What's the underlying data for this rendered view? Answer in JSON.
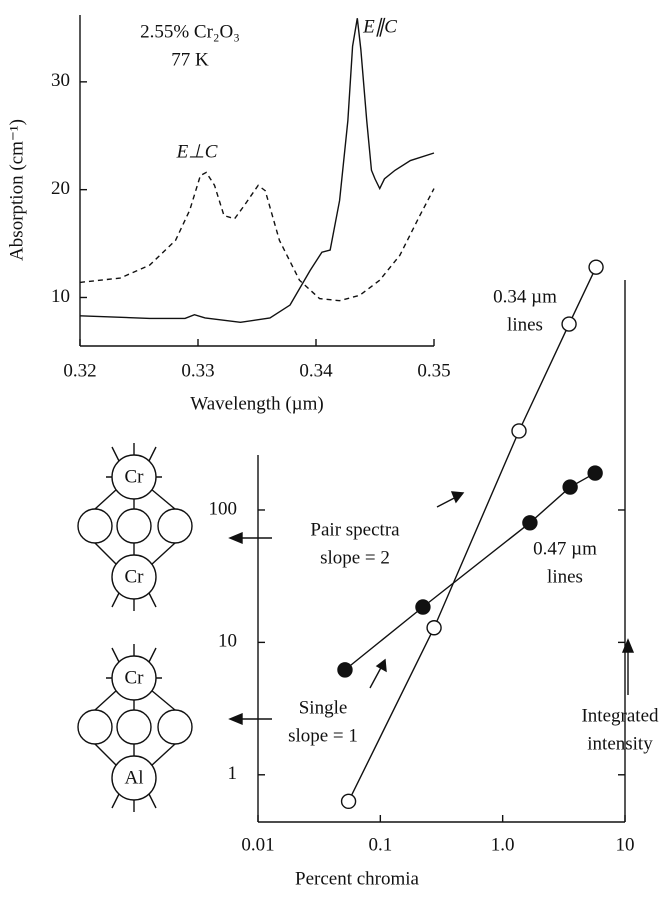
{
  "chart_data": [
    {
      "type": "line",
      "ylabel": "Absorption (cm⁻¹)",
      "xlabel": "Wavelength (µm)",
      "xlim": [
        0.32,
        0.35
      ],
      "xticks": [
        0.32,
        0.33,
        0.34,
        0.35
      ],
      "ylim": [
        5.5,
        36.2
      ],
      "yticks": [
        10,
        20,
        30
      ],
      "annotations": [
        {
          "lines": [
            "2.55% Cr₂O₃",
            "77 K"
          ]
        },
        {
          "lines": [
            "E∥C"
          ]
        },
        {
          "lines": [
            "E⊥C"
          ]
        }
      ],
      "series": [
        {
          "color": "#111111",
          "line_style": "solid",
          "x": [
            0.32,
            0.3259,
            0.3289,
            0.3297,
            0.3306,
            0.3336,
            0.3361,
            0.3378,
            0.3395,
            0.3405,
            0.3412,
            0.342,
            0.3427,
            0.3431,
            0.3435,
            0.3438,
            0.3443,
            0.3447,
            0.345,
            0.3454,
            0.3458,
            0.3467,
            0.348,
            0.35
          ],
          "y": [
            8.3,
            8.06,
            8.06,
            8.4,
            8.1,
            7.7,
            8.1,
            9.3,
            12.5,
            14.2,
            14.4,
            19.0,
            26.4,
            33.3,
            35.9,
            33.0,
            26.4,
            21.8,
            21.0,
            20.1,
            21.0,
            21.8,
            22.7,
            23.4
          ]
        },
        {
          "color": "#111111",
          "line_style": "dashed",
          "x": [
            0.32,
            0.3234,
            0.3259,
            0.3281,
            0.3293,
            0.3302,
            0.3307,
            0.3314,
            0.3322,
            0.3331,
            0.3339,
            0.3351,
            0.3357,
            0.3369,
            0.3386,
            0.3403,
            0.342,
            0.3437,
            0.3454,
            0.3471,
            0.3488,
            0.35
          ],
          "y": [
            11.4,
            11.8,
            13.0,
            15.3,
            18.1,
            21.3,
            21.6,
            20.4,
            17.6,
            17.3,
            18.5,
            20.4,
            19.9,
            15.3,
            11.6,
            9.9,
            9.7,
            10.2,
            11.6,
            13.9,
            17.6,
            20.1
          ]
        }
      ]
    },
    {
      "type": "scatter",
      "xlabel": "Percent chromia",
      "log_x": true,
      "log_y": true,
      "xlim": [
        0.01,
        10
      ],
      "xticks": [
        0.01,
        0.1,
        {
          "value": 1,
          "label": "1.0"
        },
        10
      ],
      "ylim": [
        0.44,
        8000
      ],
      "yticks": [
        1,
        10,
        100
      ],
      "annotations": [
        {
          "lines": [
            "0.34 µm",
            "lines"
          ]
        },
        {
          "lines": [
            "Pair spectra",
            "slope = 2"
          ]
        },
        {
          "lines": [
            "0.47 µm",
            "lines"
          ]
        },
        {
          "lines": [
            "Single",
            "slope = 1"
          ]
        },
        {
          "lines": [
            "Integrated",
            "intensity"
          ]
        }
      ],
      "series": [
        {
          "color": "#111111",
          "marker": "open",
          "x": [
            0.055,
            0.275,
            1.36,
            3.49,
            5.8
          ],
          "values": [
            0.63,
            12.9,
            395,
            2535,
            6820
          ]
        },
        {
          "color": "#111111",
          "marker": "filled",
          "x": [
            0.0514,
            0.223,
            1.67,
            3.56,
            5.7
          ],
          "values": [
            6.2,
            18.5,
            80,
            149,
            190
          ]
        }
      ]
    }
  ],
  "diagrams": [
    {
      "top": "Cr",
      "bottom": "Cr"
    },
    {
      "top": "Cr",
      "bottom": "Al"
    }
  ]
}
